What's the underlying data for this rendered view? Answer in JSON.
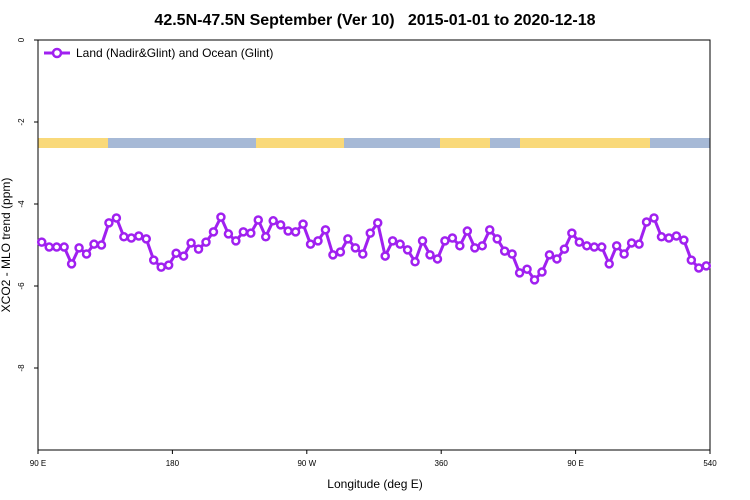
{
  "chart_data": {
    "type": "line",
    "title": "42.5N-47.5N September (Ver 10)   2015-01-01 to 2020-12-18",
    "xlabel": "Longitude (deg E)",
    "ylabel": "XCO2 - MLO trend (ppm)",
    "x": [
      92.5,
      97.5,
      102.5,
      107.5,
      112.5,
      117.5,
      122.5,
      127.5,
      132.5,
      137.5,
      142.5,
      147.5,
      152.5,
      157.5,
      162.5,
      167.5,
      172.5,
      177.5,
      182.5,
      187.5,
      192.5,
      197.5,
      202.5,
      207.5,
      212.5,
      217.5,
      222.5,
      227.5,
      232.5,
      237.5,
      242.5,
      247.5,
      252.5,
      257.5,
      262.5,
      267.5,
      272.5,
      277.5,
      282.5,
      287.5,
      292.5,
      297.5,
      302.5,
      307.5,
      312.5,
      317.5,
      322.5,
      327.5,
      332.5,
      337.5,
      342.5,
      347.5,
      352.5,
      357.5,
      362.5,
      367.5,
      372.5,
      377.5,
      382.5,
      387.5,
      392.5,
      397.5,
      402.5,
      407.5,
      412.5,
      417.5,
      422.5,
      427.5,
      432.5,
      437.5,
      442.5,
      447.5,
      452.5,
      457.5,
      462.5,
      467.5,
      472.5,
      477.5,
      482.5,
      487.5,
      492.5,
      497.5,
      502.5,
      507.5,
      512.5,
      517.5,
      522.5,
      527.5,
      532.5,
      537.5
    ],
    "series": [
      {
        "name": "Land (Nadir&Glint) and Ocean (Glint)",
        "color": "#a020f0",
        "values": [
          -4.93,
          -5.05,
          -5.05,
          -5.05,
          -5.46,
          -5.07,
          -5.22,
          -4.98,
          -5.0,
          -4.46,
          -4.34,
          -4.8,
          -4.83,
          -4.78,
          -4.85,
          -5.37,
          -5.54,
          -5.49,
          -5.2,
          -5.27,
          -4.95,
          -5.1,
          -4.93,
          -4.68,
          -4.32,
          -4.73,
          -4.9,
          -4.68,
          -4.71,
          -4.39,
          -4.8,
          -4.41,
          -4.51,
          -4.66,
          -4.68,
          -4.49,
          -4.98,
          -4.9,
          -4.63,
          -5.24,
          -5.17,
          -4.85,
          -5.07,
          -5.22,
          -4.71,
          -4.46,
          -5.27,
          -4.9,
          -4.98,
          -5.12,
          -5.41,
          -4.9,
          -5.24,
          -5.34,
          -4.9,
          -4.83,
          -5.02,
          -4.66,
          -5.07,
          -5.02,
          -4.63,
          -4.85,
          -5.15,
          -5.22,
          -5.68,
          -5.59,
          -5.85,
          -5.66,
          -5.24,
          -5.34,
          -5.1,
          -4.71,
          -4.93,
          -5.02,
          -5.05,
          -5.05,
          -5.46,
          -5.02,
          -5.22,
          -4.95,
          -4.98,
          -4.44,
          -4.34,
          -4.8,
          -4.83,
          -4.78,
          -4.88,
          -5.37,
          -5.56,
          -5.51
        ]
      }
    ],
    "xlim": [
      90,
      540
    ],
    "xticks": [
      {
        "value": 90,
        "label": "90 E"
      },
      180,
      {
        "value": 270,
        "label": "90 W"
      },
      360,
      {
        "value": 450,
        "label": "90 E"
      },
      540
    ],
    "ylim": [
      -10,
      0
    ],
    "yticks": [
      0,
      -2,
      -4,
      -6,
      -8
    ],
    "legend": "upper left"
  }
}
